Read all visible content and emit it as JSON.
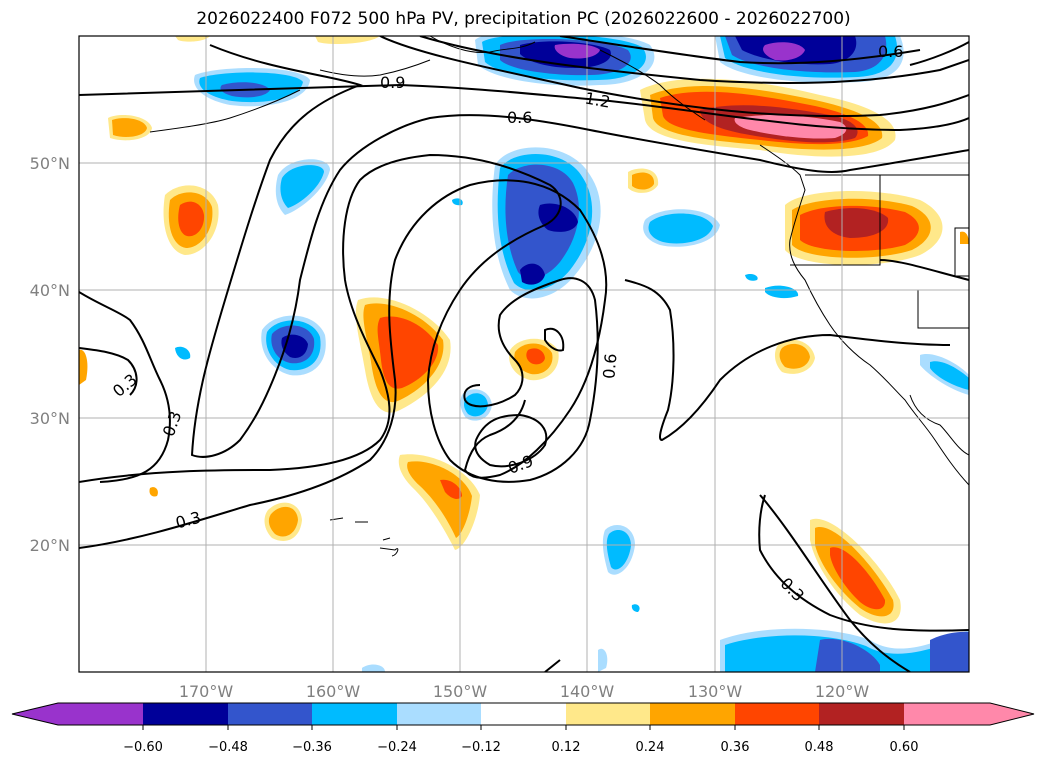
{
  "title": "2026022400 F072 500 hPa PV, precipitation PC (2026022600 - 2026022700)",
  "lat_labels": [
    "50°N",
    "40°N",
    "30°N",
    "20°N"
  ],
  "lon_labels": [
    "170°W",
    "160°W",
    "150°W",
    "140°W",
    "130°W",
    "120°W"
  ],
  "contour_labels": [
    "0.9",
    "1.2",
    "0.6",
    "0.6",
    "0.3",
    "0.3",
    "0.6",
    "0.9",
    "0.3",
    "0.3"
  ],
  "colorbar": {
    "colors": [
      "#9933cc",
      "#000099",
      "#3355cc",
      "#00bbff",
      "#aaddff",
      "#ffffff",
      "#ffe88a",
      "#ffa500",
      "#ff4500",
      "#b22222",
      "#ff88aa"
    ],
    "tick_labels": [
      "−0.60",
      "−0.48",
      "−0.36",
      "−0.24",
      "−0.12",
      "0.12",
      "0.24",
      "0.36",
      "0.48",
      "0.60"
    ]
  }
}
